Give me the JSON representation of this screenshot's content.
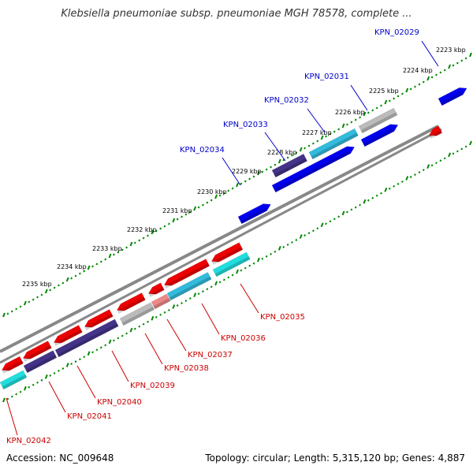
{
  "title": "Klebsiella pneumoniae subsp. pneumoniae MGH 78578, complete ...",
  "footer": {
    "accession": "Accession: NC_009648",
    "summary": "Topology: circular; Length: 5,315,120 bp; Genes: 4,887"
  },
  "colors": {
    "backbone": "#888888",
    "tick": "#008800",
    "forward_label": "#0000cc",
    "reverse_label": "#cc0000",
    "forward_gene": "#0000ee",
    "reverse_gene": "#ee0000",
    "cyan_gene": "#22dddd",
    "navy_gene": "#443388",
    "gray_gene": "#bbbbbb",
    "pink_gene": "#ee8888",
    "sky_gene": "#33bbdd"
  },
  "kbp_labels": [
    "2223 kbp",
    "2224 kbp",
    "2225 kbp",
    "2226 kbp",
    "2227 kbp",
    "2228 kbp",
    "2229 kbp",
    "2230 kbp",
    "2231 kbp",
    "2232 kbp",
    "2233 kbp",
    "2234 kbp",
    "2235 kbp"
  ],
  "forward_genes": [
    "KPN_02029",
    "KPN_02031",
    "KPN_02032",
    "KPN_02033",
    "KPN_02034"
  ],
  "reverse_genes": [
    "KPN_02035",
    "KPN_02036",
    "KPN_02037",
    "KPN_02038",
    "KPN_02039",
    "KPN_02040",
    "KPN_02041",
    "KPN_02042"
  ]
}
